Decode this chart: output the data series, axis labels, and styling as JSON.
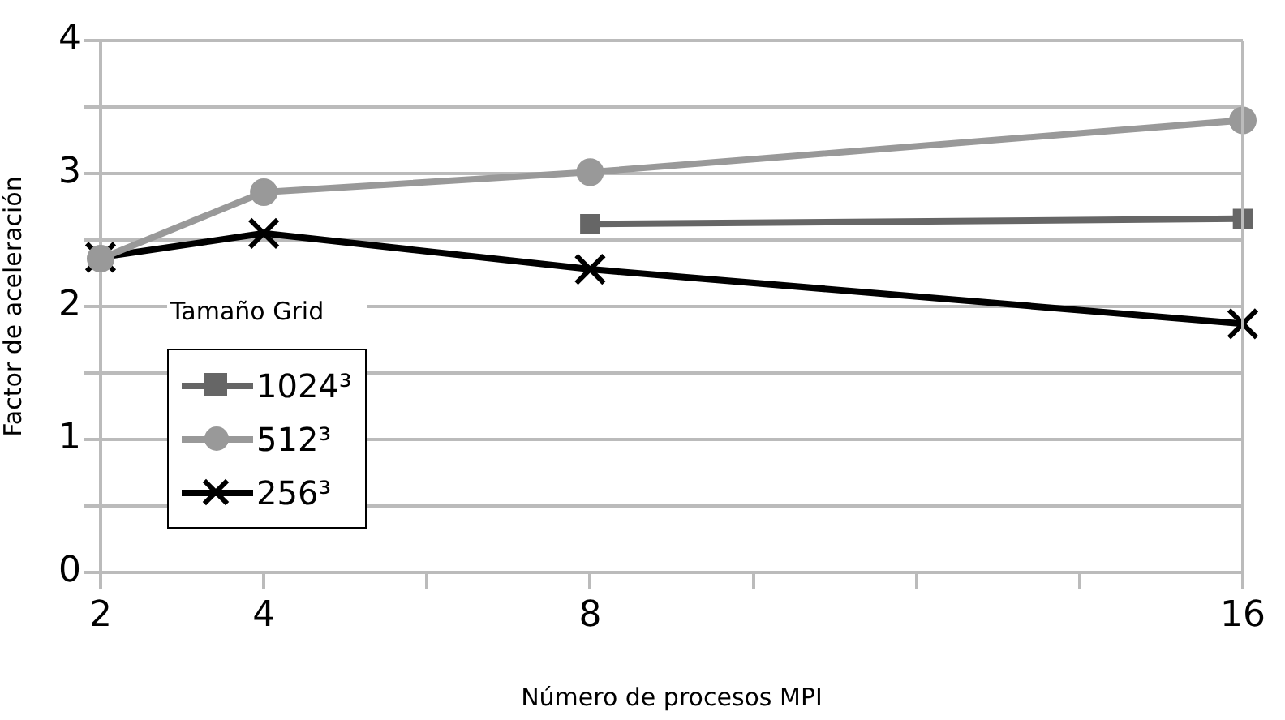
{
  "chart_data": {
    "type": "line",
    "xlabel": "Número de procesos MPI",
    "ylabel": "Factor de aceleración",
    "legend_title": "Tamaño Grid",
    "categories": [
      "2",
      "4",
      null,
      "8",
      null,
      null,
      null,
      "16"
    ],
    "series": [
      {
        "name": "1024³",
        "color": "#666666",
        "marker": "square",
        "values": [
          null,
          null,
          null,
          2.62,
          null,
          null,
          null,
          2.66
        ]
      },
      {
        "name": "512³",
        "color": "#999999",
        "marker": "circle",
        "values": [
          2.36,
          2.86,
          null,
          3.01,
          null,
          null,
          null,
          3.4
        ]
      },
      {
        "name": "256³",
        "color": "#000000",
        "marker": "cross",
        "values": [
          2.37,
          2.55,
          null,
          2.28,
          null,
          null,
          null,
          1.87
        ]
      }
    ],
    "ylim": [
      0,
      4
    ],
    "yticks": [
      0,
      {
        "value": 0.5,
        "label": null
      },
      1,
      {
        "value": 1.5,
        "label": null
      },
      2,
      {
        "value": 2.5,
        "label": null
      },
      3,
      {
        "value": 3.5,
        "label": null
      },
      4
    ],
    "grid": "y",
    "legend": "bottom left"
  }
}
